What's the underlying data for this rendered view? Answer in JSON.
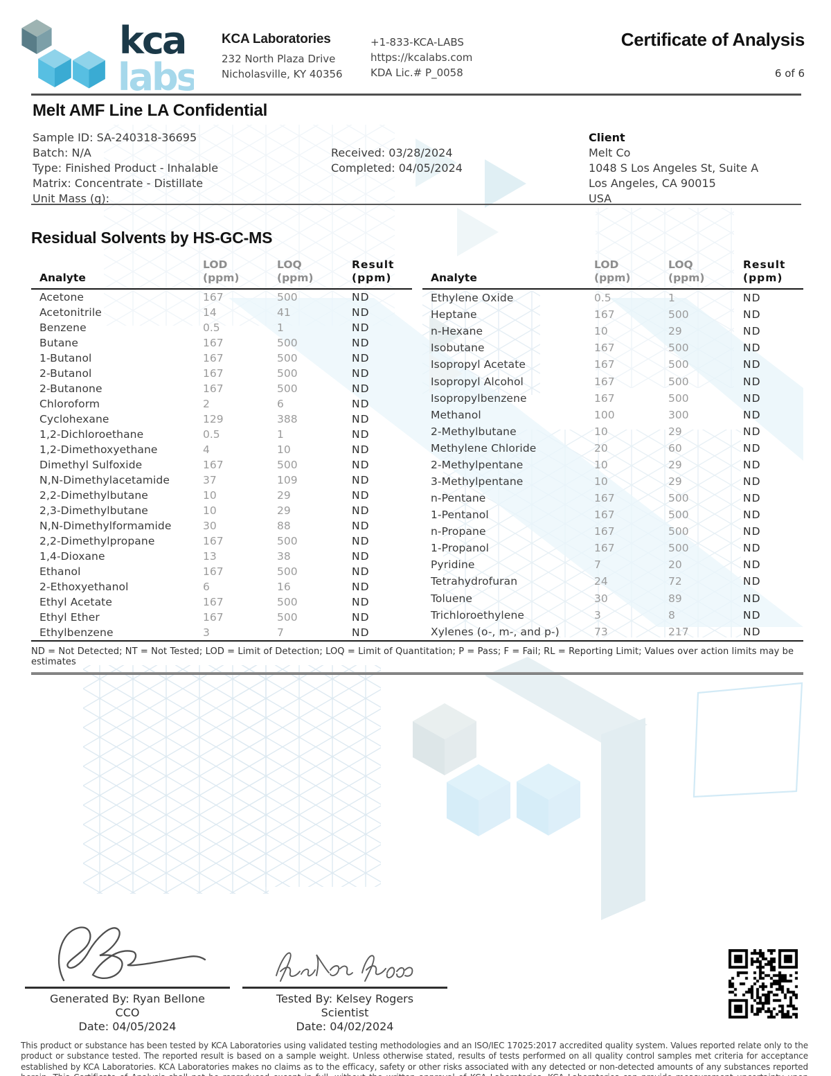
{
  "header": {
    "logo_word_top": "kca",
    "logo_word_bottom": "labs",
    "company_name": "KCA Laboratories",
    "address_line1": "232 North Plaza Drive",
    "address_line2": "Nicholasville, KY 40356",
    "phone": "+1-833-KCA-LABS",
    "website": "https://kcalabs.com",
    "license": "KDA Lic.# P_0058",
    "doc_title": "Certificate of Analysis",
    "page_indicator": "6 of 6"
  },
  "sample": {
    "title": "Melt AMF Line LA Confidential",
    "sample_id": "Sample ID: SA-240318-36695",
    "batch": "Batch: N/A",
    "type": "Type: Finished Product - Inhalable",
    "matrix": "Matrix: Concentrate - Distillate",
    "unit_mass": "Unit Mass (g):",
    "received": "Received: 03/28/2024",
    "completed": "Completed: 04/05/2024",
    "client": {
      "label": "Client",
      "name": "Melt Co",
      "address1": "1048 S Los Angeles St, Suite A",
      "address2": "Los Angeles, CA 90015",
      "country": "USA"
    }
  },
  "results_section": {
    "title": "Residual Solvents by HS-GC-MS",
    "col_analyte": "Analyte",
    "col_lod": "LOD",
    "col_loq": "LOQ",
    "col_result": "Result",
    "col_unit": "(ppm)",
    "left_rows": [
      {
        "analyte": "Acetone",
        "lod": "167",
        "loq": "500",
        "result": "ND"
      },
      {
        "analyte": "Acetonitrile",
        "lod": "14",
        "loq": "41",
        "result": "ND"
      },
      {
        "analyte": "Benzene",
        "lod": "0.5",
        "loq": "1",
        "result": "ND"
      },
      {
        "analyte": "Butane",
        "lod": "167",
        "loq": "500",
        "result": "ND"
      },
      {
        "analyte": "1-Butanol",
        "lod": "167",
        "loq": "500",
        "result": "ND"
      },
      {
        "analyte": "2-Butanol",
        "lod": "167",
        "loq": "500",
        "result": "ND"
      },
      {
        "analyte": "2-Butanone",
        "lod": "167",
        "loq": "500",
        "result": "ND"
      },
      {
        "analyte": "Chloroform",
        "lod": "2",
        "loq": "6",
        "result": "ND"
      },
      {
        "analyte": "Cyclohexane",
        "lod": "129",
        "loq": "388",
        "result": "ND"
      },
      {
        "analyte": "1,2-Dichloroethane",
        "lod": "0.5",
        "loq": "1",
        "result": "ND"
      },
      {
        "analyte": "1,2-Dimethoxyethane",
        "lod": "4",
        "loq": "10",
        "result": "ND"
      },
      {
        "analyte": "Dimethyl Sulfoxide",
        "lod": "167",
        "loq": "500",
        "result": "ND"
      },
      {
        "analyte": "N,N-Dimethylacetamide",
        "lod": "37",
        "loq": "109",
        "result": "ND"
      },
      {
        "analyte": "2,2-Dimethylbutane",
        "lod": "10",
        "loq": "29",
        "result": "ND"
      },
      {
        "analyte": "2,3-Dimethylbutane",
        "lod": "10",
        "loq": "29",
        "result": "ND"
      },
      {
        "analyte": "N,N-Dimethylformamide",
        "lod": "30",
        "loq": "88",
        "result": "ND"
      },
      {
        "analyte": "2,2-Dimethylpropane",
        "lod": "167",
        "loq": "500",
        "result": "ND"
      },
      {
        "analyte": "1,4-Dioxane",
        "lod": "13",
        "loq": "38",
        "result": "ND"
      },
      {
        "analyte": "Ethanol",
        "lod": "167",
        "loq": "500",
        "result": "ND"
      },
      {
        "analyte": "2-Ethoxyethanol",
        "lod": "6",
        "loq": "16",
        "result": "ND"
      },
      {
        "analyte": "Ethyl Acetate",
        "lod": "167",
        "loq": "500",
        "result": "ND"
      },
      {
        "analyte": "Ethyl Ether",
        "lod": "167",
        "loq": "500",
        "result": "ND"
      },
      {
        "analyte": "Ethylbenzene",
        "lod": "3",
        "loq": "7",
        "result": "ND"
      }
    ],
    "right_rows": [
      {
        "analyte": "Ethylene Oxide",
        "lod": "0.5",
        "loq": "1",
        "result": "ND"
      },
      {
        "analyte": "Heptane",
        "lod": "167",
        "loq": "500",
        "result": "ND"
      },
      {
        "analyte": "n-Hexane",
        "lod": "10",
        "loq": "29",
        "result": "ND"
      },
      {
        "analyte": "Isobutane",
        "lod": "167",
        "loq": "500",
        "result": "ND"
      },
      {
        "analyte": "Isopropyl Acetate",
        "lod": "167",
        "loq": "500",
        "result": "ND"
      },
      {
        "analyte": "Isopropyl Alcohol",
        "lod": "167",
        "loq": "500",
        "result": "ND"
      },
      {
        "analyte": "Isopropylbenzene",
        "lod": "167",
        "loq": "500",
        "result": "ND"
      },
      {
        "analyte": "Methanol",
        "lod": "100",
        "loq": "300",
        "result": "ND"
      },
      {
        "analyte": "2-Methylbutane",
        "lod": "10",
        "loq": "29",
        "result": "ND"
      },
      {
        "analyte": "Methylene Chloride",
        "lod": "20",
        "loq": "60",
        "result": "ND"
      },
      {
        "analyte": "2-Methylpentane",
        "lod": "10",
        "loq": "29",
        "result": "ND"
      },
      {
        "analyte": "3-Methylpentane",
        "lod": "10",
        "loq": "29",
        "result": "ND"
      },
      {
        "analyte": "n-Pentane",
        "lod": "167",
        "loq": "500",
        "result": "ND"
      },
      {
        "analyte": "1-Pentanol",
        "lod": "167",
        "loq": "500",
        "result": "ND"
      },
      {
        "analyte": "n-Propane",
        "lod": "167",
        "loq": "500",
        "result": "ND"
      },
      {
        "analyte": "1-Propanol",
        "lod": "167",
        "loq": "500",
        "result": "ND"
      },
      {
        "analyte": "Pyridine",
        "lod": "7",
        "loq": "20",
        "result": "ND"
      },
      {
        "analyte": "Tetrahydrofuran",
        "lod": "24",
        "loq": "72",
        "result": "ND"
      },
      {
        "analyte": "Toluene",
        "lod": "30",
        "loq": "89",
        "result": "ND"
      },
      {
        "analyte": "Trichloroethylene",
        "lod": "3",
        "loq": "8",
        "result": "ND"
      },
      {
        "analyte": "Xylenes (o-, m-, and p-)",
        "lod": "73",
        "loq": "217",
        "result": "ND"
      }
    ],
    "footnote": "ND = Not Detected; NT = Not Tested; LOD = Limit of Detection; LOQ = Limit of Quantitation; P = Pass; F = Fail; RL = Reporting Limit; Values over action limits may be estimates"
  },
  "signatures": {
    "generated": {
      "by": "Generated By: Ryan Bellone",
      "role": "CCO",
      "date": "Date: 04/05/2024"
    },
    "tested": {
      "by": "Tested By: Kelsey Rogers",
      "role": "Scientist",
      "date": "Date: 04/02/2024"
    }
  },
  "disclaimer": "This product or substance has been tested by KCA Laboratories using validated testing methodologies and an ISO/IEC 17025:2017 accredited quality system. Values reported relate only to the product or substance tested. The reported result is based on a sample weight. Unless otherwise stated, results of tests performed on all quality control samples met criteria for acceptance established by KCA Laboratories. KCA Laboratories makes no claims as to the efficacy, safety or other risks associated with any detected or non-detected amounts of any substances reported herein. This Certificate of Analysis shall not be reproduced except in full, without the written approval of KCA Laboratories. KCA Laboratories can provide measurement uncertainty upon request.",
  "colors": {
    "brand_dark": "#1b3948",
    "brand_light": "#a6d8eb",
    "cube_blue": "#4fb9df",
    "muted_value_gray": "#9b9b9b"
  }
}
